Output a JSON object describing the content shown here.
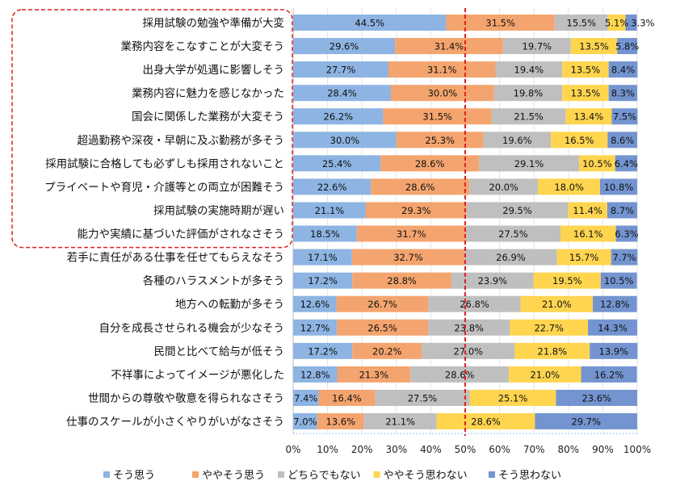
{
  "chart_data": {
    "type": "bar",
    "orientation": "horizontal",
    "stacked": true,
    "percent": true,
    "xlim": [
      0,
      100
    ],
    "x_ticks": [
      "0%",
      "10%",
      "20%",
      "30%",
      "40%",
      "50%",
      "60%",
      "70%",
      "80%",
      "90%",
      "100%"
    ],
    "grid": true,
    "legend_position": "bottom",
    "reference_line": {
      "value": 50,
      "color": "#e02020",
      "style": "dashed"
    },
    "highlight_box": {
      "rows": 10,
      "color": "#e02020",
      "style": "dashed"
    },
    "categories": [
      "採用試験の勉強や準備が大変",
      "業務内容をこなすことが大変そう",
      "出身大学が処遇に影響しそう",
      "業務内容に魅力を感じなかった",
      "国会に関係した業務が大変そう",
      "超過勤務や深夜・早朝に及ぶ勤務が多そう",
      "採用試験に合格しても必ずしも採用されないこと",
      "プライベートや育児・介護等との両立が困難そう",
      "採用試験の実施時期が遅い",
      "能力や実績に基づいた評価がされなさそう",
      "若手に責任がある仕事を任せてもらえなそう",
      "各種のハラスメントが多そう",
      "地方への転勤が多そう",
      "自分を成長させられる機会が少なそう",
      "民間と比べて給与が低そう",
      "不祥事によってイメージが悪化した",
      "世間からの尊敬や敬意を得られなさそう",
      "仕事のスケールが小さくやりがいがなさそう"
    ],
    "series": [
      {
        "name": "そう思う",
        "color": "#8db4e2",
        "values": [
          44.5,
          29.6,
          27.7,
          28.4,
          26.2,
          30.0,
          25.4,
          22.6,
          21.1,
          18.5,
          17.1,
          17.2,
          12.6,
          12.7,
          17.2,
          12.8,
          7.4,
          7.0
        ]
      },
      {
        "name": "ややそう思う",
        "color": "#f4a46e",
        "values": [
          31.5,
          31.4,
          31.1,
          30.0,
          31.5,
          25.3,
          28.6,
          28.6,
          29.3,
          31.7,
          32.7,
          28.8,
          26.7,
          26.5,
          20.2,
          21.3,
          16.4,
          13.6
        ]
      },
      {
        "name": "どちらでもない",
        "color": "#bfbfbf",
        "values": [
          15.5,
          19.7,
          19.4,
          19.8,
          21.5,
          19.6,
          29.1,
          20.0,
          29.5,
          27.5,
          26.9,
          23.9,
          26.8,
          23.8,
          27.0,
          28.6,
          27.5,
          21.1
        ]
      },
      {
        "name": "ややそう思わない",
        "color": "#ffd54f",
        "values": [
          5.1,
          13.5,
          13.5,
          13.5,
          13.4,
          16.5,
          10.5,
          18.0,
          11.4,
          16.1,
          15.7,
          19.5,
          21.0,
          22.7,
          21.8,
          21.0,
          25.1,
          28.6
        ]
      },
      {
        "name": "そう思わない",
        "color": "#7394d0",
        "values": [
          3.3,
          5.8,
          8.4,
          8.3,
          7.5,
          8.6,
          6.4,
          10.8,
          8.7,
          6.3,
          7.7,
          10.5,
          12.8,
          14.3,
          13.9,
          16.2,
          23.6,
          29.7
        ]
      }
    ]
  }
}
